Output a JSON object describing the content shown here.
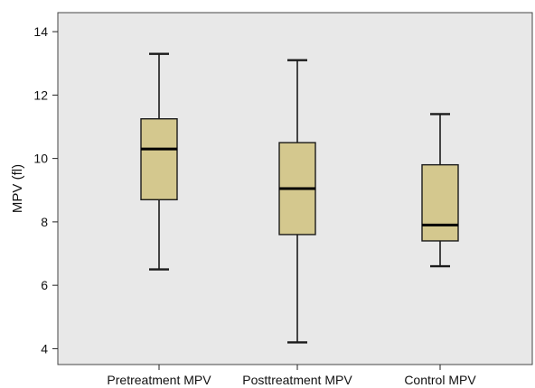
{
  "chart_data": {
    "type": "boxplot",
    "title": "",
    "xlabel": "",
    "ylabel": "MPV (fl)",
    "ylim": [
      3.5,
      14.6
    ],
    "yticks": [
      4,
      6,
      8,
      10,
      12,
      14
    ],
    "grid": false,
    "legend": "none",
    "categories": [
      "Pretreatment MPV",
      "Posttreatment MPV",
      "Control MPV"
    ],
    "boxes": [
      {
        "min": 6.5,
        "q1": 8.7,
        "median": 10.3,
        "q3": 11.25,
        "max": 13.3
      },
      {
        "min": 4.2,
        "q1": 7.6,
        "median": 9.05,
        "q3": 10.5,
        "max": 13.1
      },
      {
        "min": 6.6,
        "q1": 7.4,
        "median": 7.9,
        "q3": 9.8,
        "max": 11.4
      }
    ],
    "colors": {
      "plot_background": "#e8e8e8",
      "box_fill": "#d4c88e",
      "line": "#1a1a1a",
      "frame": "#444444"
    }
  }
}
